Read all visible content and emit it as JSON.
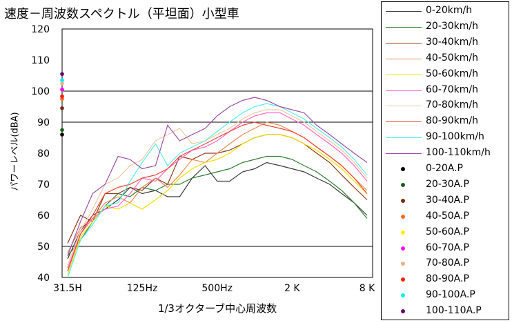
{
  "chart_data": {
    "type": "line",
    "title": "速度－周波数スペクトル（平坦面）小型車",
    "xlabel": "1/3オクターブ中心周波数",
    "ylabel": "パワーレベル(dBA)",
    "ylim": [
      40,
      120
    ],
    "yticks": [
      40,
      50,
      60,
      70,
      80,
      90,
      100,
      110,
      120
    ],
    "grid_y": [
      50,
      90,
      100
    ],
    "x": [
      31.5,
      40,
      50,
      63,
      80,
      100,
      125,
      160,
      200,
      250,
      315,
      400,
      500,
      630,
      800,
      1000,
      1250,
      1600,
      2000,
      2500,
      3150,
      4000,
      5000,
      6300,
      8000
    ],
    "xtick_values": [
      31.5,
      125,
      500,
      2000,
      8000
    ],
    "xtick_labels": [
      "31.5H",
      "125Hz",
      "500Hz",
      "2 K",
      "8 K"
    ],
    "legend_position": "right",
    "series": [
      {
        "name": "0-20km/h",
        "color": "#3a3a3a",
        "values": [
          46,
          55,
          60,
          62,
          65,
          69,
          67,
          68,
          66,
          66,
          72,
          76,
          71,
          71,
          74,
          75,
          77,
          76,
          75,
          74,
          72,
          70,
          67,
          64,
          60
        ]
      },
      {
        "name": "20-30km/h",
        "color": "#2e7d32",
        "values": [
          47,
          52,
          58,
          63,
          67,
          66,
          69,
          68,
          70,
          70,
          72,
          73,
          74,
          75,
          77,
          78,
          79,
          79,
          78,
          76,
          74,
          71,
          68,
          64,
          59
        ]
      },
      {
        "name": "30-40km/h",
        "color": "#8b3a1a",
        "values": [
          51,
          60,
          58,
          67,
          67,
          69,
          68,
          72,
          70,
          79,
          78,
          80,
          80,
          81,
          83,
          85,
          86,
          86,
          85,
          83,
          80,
          77,
          73,
          69,
          65
        ]
      },
      {
        "name": "40-50km/h",
        "color": "#ee8855",
        "values": [
          48,
          56,
          59,
          64,
          66,
          64,
          69,
          72,
          69,
          73,
          78,
          77,
          80,
          83,
          86,
          88,
          90,
          89,
          87,
          85,
          82,
          79,
          76,
          72,
          68
        ]
      },
      {
        "name": "50-60km/h",
        "color": "#f0e000",
        "values": [
          41,
          53,
          58,
          63,
          62,
          64,
          62,
          65,
          68,
          72,
          75,
          77,
          78,
          80,
          83,
          85,
          86,
          86,
          85,
          83,
          81,
          78,
          75,
          71,
          67
        ]
      },
      {
        "name": "60-70km/h",
        "color": "#ff66cc",
        "values": [
          43,
          54,
          59,
          62,
          63,
          67,
          72,
          71,
          75,
          78,
          81,
          82,
          84,
          87,
          90,
          92,
          93,
          93,
          91,
          89,
          86,
          83,
          80,
          76,
          71
        ]
      },
      {
        "name": "70-80km/h",
        "color": "#f5c8a0",
        "values": [
          44,
          55,
          62,
          70,
          72,
          76,
          78,
          84,
          86,
          88,
          83,
          84,
          86,
          88,
          91,
          93,
          94,
          94,
          92,
          90,
          87,
          84,
          81,
          77,
          72
        ]
      },
      {
        "name": "80-90km/h",
        "color": "#ee4433",
        "values": [
          42,
          54,
          60,
          67,
          69,
          70,
          72,
          73,
          75,
          79,
          81,
          83,
          85,
          87,
          89,
          90,
          89,
          88,
          87,
          85,
          82,
          79,
          76,
          72,
          67
        ]
      },
      {
        "name": "90-100km/h",
        "color": "#55eeee",
        "values": [
          40,
          52,
          57,
          63,
          64,
          71,
          77,
          83,
          76,
          80,
          82,
          84,
          87,
          90,
          93,
          95,
          96,
          95,
          93,
          91,
          88,
          85,
          82,
          78,
          73
        ]
      },
      {
        "name": "100-110km/h",
        "color": "#9b4ea8",
        "values": [
          47,
          58,
          67,
          70,
          79,
          78,
          75,
          76,
          89,
          84,
          86,
          88,
          92,
          95,
          97,
          98,
          97,
          95,
          94,
          93,
          89,
          86,
          83,
          80,
          77
        ]
      }
    ],
    "points": [
      {
        "name": "0-20A.P",
        "color": "#000000",
        "value": 86
      },
      {
        "name": "20-30A.P",
        "color": "#1b5e20",
        "value": 87.5
      },
      {
        "name": "30-40A.P",
        "color": "#7a2a10",
        "value": 94.5
      },
      {
        "name": "40-50A.P",
        "color": "#ff6622",
        "value": 97.5
      },
      {
        "name": "50-60A.P",
        "color": "#ffee00",
        "value": 100.5
      },
      {
        "name": "60-70A.P",
        "color": "#ff00ff",
        "value": 100.5
      },
      {
        "name": "70-80A.P",
        "color": "#f0b088",
        "value": 102.5
      },
      {
        "name": "80-90A.P",
        "color": "#ee2200",
        "value": 98.3
      },
      {
        "name": "90-100A.P",
        "color": "#00eeee",
        "value": 103.5
      },
      {
        "name": "100-110A.P",
        "color": "#660066",
        "value": 105.5
      }
    ]
  }
}
